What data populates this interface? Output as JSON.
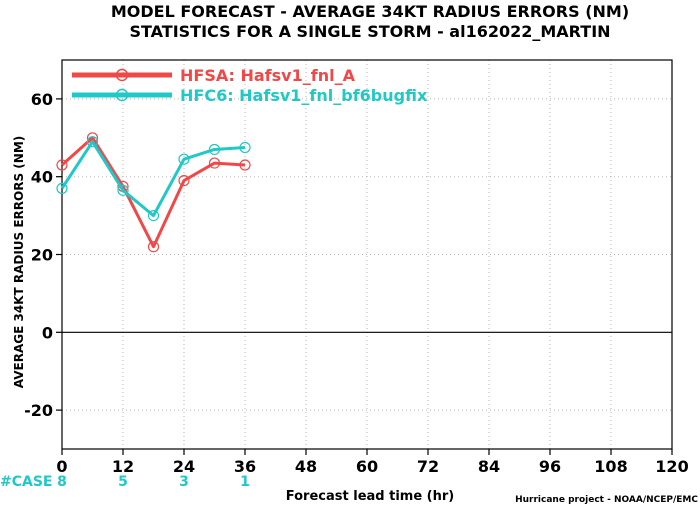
{
  "chart_data": {
    "type": "line",
    "title": "MODEL FORECAST - AVERAGE 34KT RADIUS ERRORS (NM)",
    "subtitle": "STATISTICS FOR A SINGLE STORM - al162022_MARTIN",
    "xlabel": "Forecast lead time (hr)",
    "ylabel": "AVERAGE 34KT RADIUS ERRORS (NM)",
    "xlim": [
      0,
      120
    ],
    "ylim": [
      -30,
      70
    ],
    "xticks": [
      0,
      12,
      24,
      36,
      48,
      60,
      72,
      84,
      96,
      108,
      120
    ],
    "yticks": [
      -20,
      0,
      20,
      40,
      60
    ],
    "grid": true,
    "legend_position": "top-left",
    "series": [
      {
        "name": "HFSA: Hafsv1_fnl_A",
        "color": "#f04848",
        "x": [
          0,
          6,
          12,
          18,
          24,
          30,
          36
        ],
        "y": [
          43,
          50,
          37.5,
          22,
          39,
          43.5,
          43
        ]
      },
      {
        "name": "HFC6: Hafsv1_fnl_bf6bugfix",
        "color": "#20c8c8",
        "x": [
          0,
          6,
          12,
          18,
          24,
          30,
          36
        ],
        "y": [
          37,
          49,
          36.5,
          30,
          44.5,
          47,
          47.5
        ]
      }
    ],
    "case_label": "#CASE",
    "case_color": "#20c8c8",
    "cases": [
      {
        "x": 0,
        "n": "8"
      },
      {
        "x": 12,
        "n": "5"
      },
      {
        "x": 24,
        "n": "3"
      },
      {
        "x": 36,
        "n": "1"
      }
    ],
    "credit": "Hurricane project - NOAA/NCEP/EMC"
  }
}
